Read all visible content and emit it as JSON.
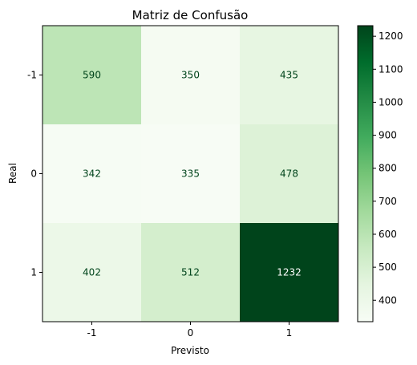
{
  "chart_data": {
    "type": "heatmap",
    "title": "Matriz de Confusão",
    "xlabel": "Previsto",
    "ylabel": "Real",
    "x_categories": [
      "-1",
      "0",
      "1"
    ],
    "y_categories": [
      "-1",
      "0",
      "1"
    ],
    "values": [
      [
        590,
        350,
        435
      ],
      [
        342,
        335,
        478
      ],
      [
        402,
        512,
        1232
      ]
    ],
    "colormap": "Greens",
    "color_range": [
      335,
      1232
    ],
    "colorbar_ticks": [
      400,
      500,
      600,
      700,
      800,
      900,
      1000,
      1100,
      1200
    ],
    "grid": false
  }
}
